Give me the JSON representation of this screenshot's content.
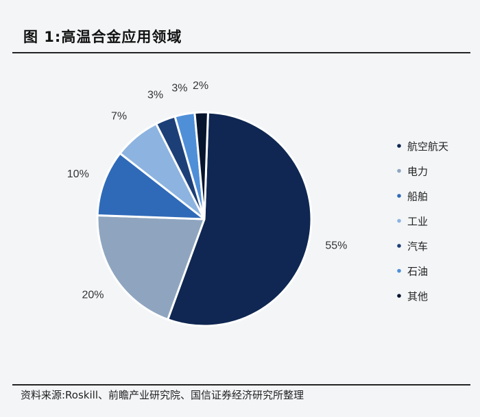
{
  "title": "图 1:高温合金应用领域",
  "source": "资料来源:Roskill、前瞻产业研究院、国信证券经济研究所整理",
  "chart_data": {
    "type": "pie",
    "title": "",
    "slices": [
      {
        "name": "航空航天",
        "value": 55,
        "label": "55%",
        "color": "#0f2752"
      },
      {
        "name": "电力",
        "value": 20,
        "label": "20%",
        "color": "#8fa5bf"
      },
      {
        "name": "船舶",
        "value": 10,
        "label": "10%",
        "color": "#2f6ab8"
      },
      {
        "name": "工业",
        "value": 7,
        "label": "7%",
        "color": "#8db4e0"
      },
      {
        "name": "汽车",
        "value": 3,
        "label": "3%",
        "color": "#1d3f78"
      },
      {
        "name": "石油",
        "value": 3,
        "label": "3%",
        "color": "#4f8fd8"
      },
      {
        "name": "其他",
        "value": 2,
        "label": "2%",
        "color": "#06142e"
      }
    ],
    "legend_position": "right"
  }
}
